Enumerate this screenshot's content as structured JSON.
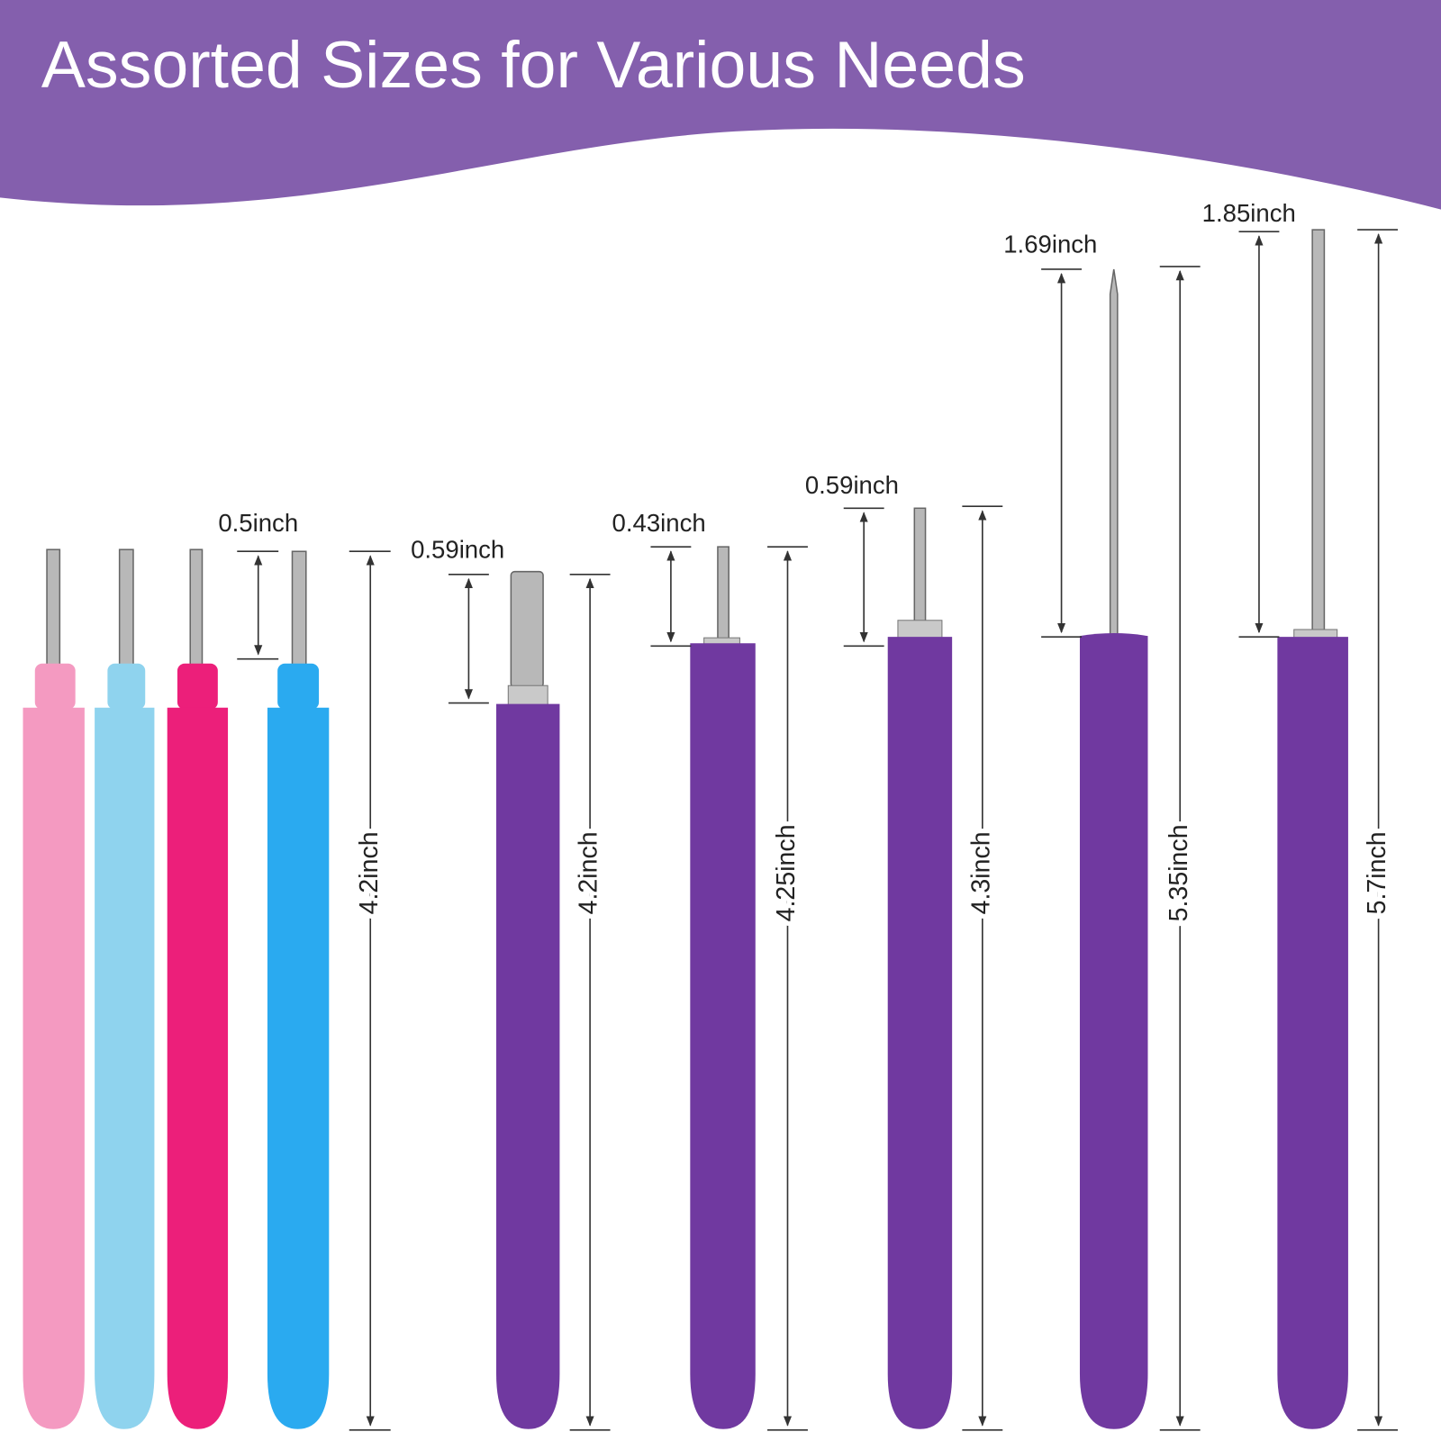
{
  "header": {
    "title": "Assorted Sizes for Various Needs"
  },
  "tools": [
    {
      "tip": "0.5inch",
      "length": "4.2inch"
    },
    {
      "tip": "0.59inch",
      "length": "4.2inch"
    },
    {
      "tip": "0.43inch",
      "length": "4.25inch"
    },
    {
      "tip": "0.59inch",
      "length": "4.3inch"
    },
    {
      "tip": "1.69inch",
      "length": "5.35inch"
    },
    {
      "tip": "1.85inch",
      "length": "5.7inch"
    }
  ]
}
